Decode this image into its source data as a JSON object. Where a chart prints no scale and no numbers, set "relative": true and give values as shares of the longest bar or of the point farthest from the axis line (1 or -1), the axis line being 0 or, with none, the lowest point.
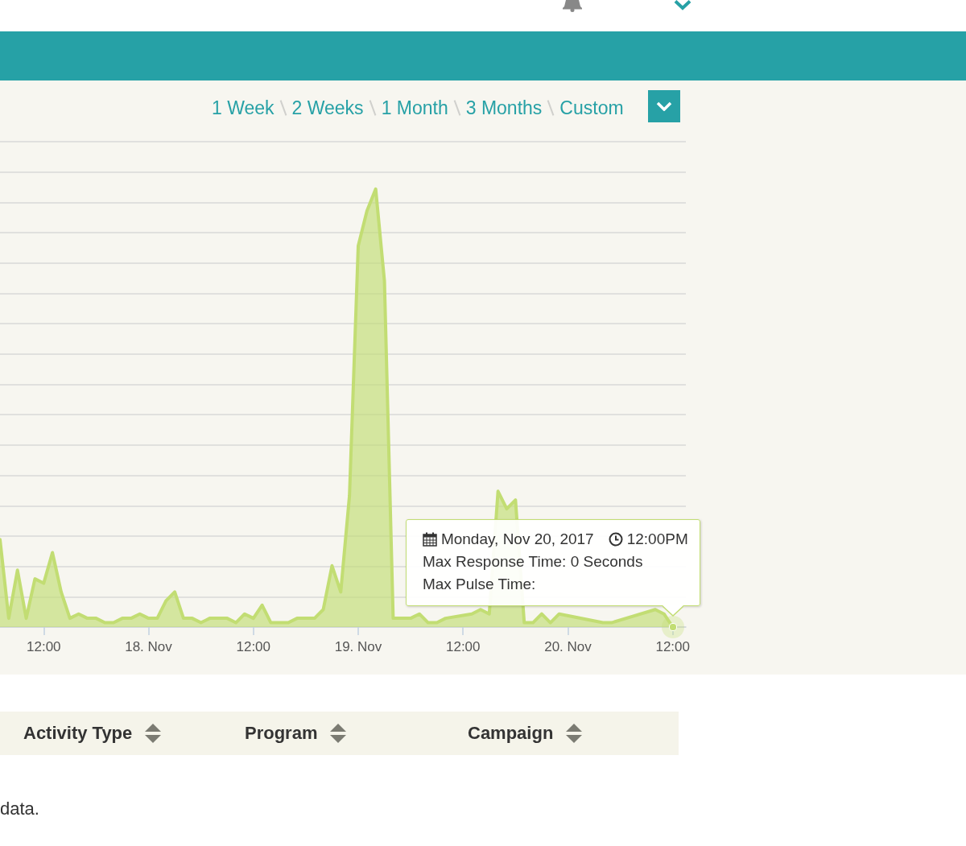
{
  "chart_data": {
    "type": "area",
    "relative": true,
    "color": "#c2dd73",
    "grid": "y",
    "x": [
      "2017-11-17T07:00",
      "2017-11-17T08:00",
      "2017-11-17T09:00",
      "2017-11-17T10:00",
      "2017-11-17T11:00",
      "2017-11-17T12:00",
      "2017-11-17T13:00",
      "2017-11-17T14:00",
      "2017-11-17T15:00",
      "2017-11-17T16:00",
      "2017-11-17T17:00",
      "2017-11-17T18:00",
      "2017-11-17T19:00",
      "2017-11-17T20:00",
      "2017-11-17T21:00",
      "2017-11-17T22:00",
      "2017-11-17T23:00",
      "2017-11-18T00:00",
      "2017-11-18T01:00",
      "2017-11-18T02:00",
      "2017-11-18T03:00",
      "2017-11-18T04:00",
      "2017-11-18T05:00",
      "2017-11-18T06:00",
      "2017-11-18T07:00",
      "2017-11-18T08:00",
      "2017-11-18T09:00",
      "2017-11-18T10:00",
      "2017-11-18T11:00",
      "2017-11-18T12:00",
      "2017-11-18T13:00",
      "2017-11-18T14:00",
      "2017-11-18T15:00",
      "2017-11-18T16:00",
      "2017-11-18T17:00",
      "2017-11-18T18:00",
      "2017-11-18T19:00",
      "2017-11-18T20:00",
      "2017-11-18T21:00",
      "2017-11-18T22:00",
      "2017-11-18T23:00",
      "2017-11-19T00:00",
      "2017-11-19T01:00",
      "2017-11-19T02:00",
      "2017-11-19T03:00",
      "2017-11-19T04:00",
      "2017-11-19T05:00",
      "2017-11-19T06:00",
      "2017-11-19T07:00",
      "2017-11-19T08:00",
      "2017-11-19T09:00",
      "2017-11-19T10:00",
      "2017-11-19T11:00",
      "2017-11-19T12:00",
      "2017-11-19T13:00",
      "2017-11-19T14:00",
      "2017-11-19T15:00",
      "2017-11-19T16:00",
      "2017-11-19T17:00",
      "2017-11-19T18:00",
      "2017-11-19T19:00",
      "2017-11-19T20:00",
      "2017-11-19T21:00",
      "2017-11-19T22:00",
      "2017-11-19T23:00",
      "2017-11-20T00:00",
      "2017-11-20T01:00",
      "2017-11-20T02:00",
      "2017-11-20T03:00",
      "2017-11-20T04:00",
      "2017-11-20T05:00",
      "2017-11-20T06:00",
      "2017-11-20T07:00",
      "2017-11-20T08:00",
      "2017-11-20T09:00",
      "2017-11-20T10:00",
      "2017-11-20T11:00",
      "2017-11-20T12:00"
    ],
    "values": [
      0.2,
      0.02,
      0.13,
      0.02,
      0.11,
      0.1,
      0.17,
      0.08,
      0.02,
      0.03,
      0.02,
      0.02,
      0.01,
      0.01,
      0.02,
      0.02,
      0.03,
      0.02,
      0.02,
      0.06,
      0.08,
      0.02,
      0.02,
      0.01,
      0.02,
      0.02,
      0.02,
      0.01,
      0.03,
      0.02,
      0.05,
      0.01,
      0.01,
      0.01,
      0.02,
      0.02,
      0.02,
      0.04,
      0.14,
      0.08,
      0.3,
      0.87,
      0.95,
      1,
      0.79,
      0.02,
      0.02,
      0.02,
      0.03,
      0.01,
      0.01,
      0.02,
      null,
      null,
      0.03,
      0.04,
      0.03,
      0.31,
      0.27,
      0.29,
      0.01,
      0.01,
      0.03,
      0.01,
      0.03,
      null,
      null,
      null,
      null,
      0.01,
      0.01,
      null,
      null,
      null,
      null,
      0.04,
      0.03,
      0
    ],
    "xlim": [
      "2017-11-17T07:00",
      "2017-11-20T13:30"
    ],
    "xticks": [
      {
        "value": "2017-11-17T12:00",
        "label": "12:00"
      },
      {
        "value": "2017-11-18T00:00",
        "label": "18. Nov"
      },
      {
        "value": "2017-11-18T12:00",
        "label": "12:00"
      },
      {
        "value": "2017-11-19T00:00",
        "label": "19. Nov"
      },
      {
        "value": "2017-11-19T12:00",
        "label": "12:00"
      },
      {
        "value": "2017-11-20T00:00",
        "label": "20. Nov"
      },
      {
        "value": "2017-11-20T12:00",
        "label": "12:00"
      }
    ],
    "annotations": [
      "1 Week",
      "2 Weeks",
      "1 Month",
      "3 Months",
      "Custom",
      "Activity Type",
      "Program",
      "Campaign",
      "data.",
      "Monday, Nov 20, 2017",
      "12:00PM",
      "Max Response Time: 0 Seconds",
      "Max Pulse Time:"
    ]
  }
}
